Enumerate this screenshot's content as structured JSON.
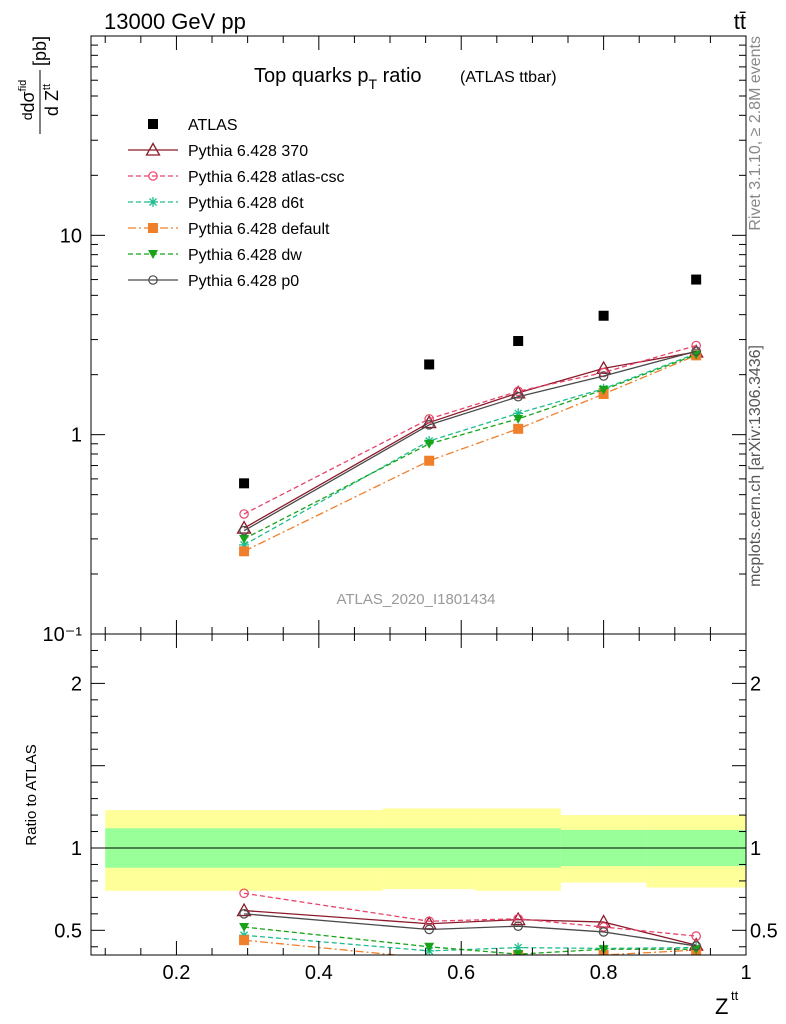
{
  "header": {
    "left": "13000 GeV pp",
    "right": "tt̄"
  },
  "side_labels": {
    "rivet": "Rivet 3.1.10, ≥ 2.8M events",
    "mcplots": "mcplots.cern.ch [arXiv:1306.3436]"
  },
  "analysis_id": "ATLAS_2020_I1801434",
  "chart_data": [
    {
      "type": "scatter",
      "title": "Top quarks p",
      "title_sub": "T",
      "title_rest": " ratio",
      "title_small": "(ATLAS ttbar)",
      "ylabel": "dσ^fid / d Z^tt [pb]",
      "y_scale": "log",
      "ylim": [
        0.1,
        100
      ],
      "xlim": [
        0.08,
        1.0
      ],
      "y_ticks": [
        {
          "value": 10,
          "label": "10"
        },
        {
          "value": 1,
          "label": "1"
        },
        {
          "value": 0.1,
          "label": "10⁻¹"
        }
      ],
      "legend_position": "top-left",
      "series": [
        {
          "name": "ATLAS",
          "color": "#000000",
          "marker": "square",
          "line": "none",
          "x": [
            0.295,
            0.555,
            0.68,
            0.8,
            0.93
          ],
          "y": [
            0.57,
            2.25,
            2.95,
            3.95,
            6.0
          ]
        },
        {
          "name": "Pythia 6.428 370",
          "color": "#8b1a2a",
          "marker": "triangle-open",
          "line": "solid",
          "x": [
            0.295,
            0.555,
            0.68,
            0.8,
            0.93
          ],
          "y": [
            0.34,
            1.15,
            1.62,
            2.15,
            2.6
          ]
        },
        {
          "name": "Pythia 6.428 atlas-csc",
          "color": "#e8436a",
          "marker": "circle-open",
          "line": "dashed",
          "x": [
            0.295,
            0.555,
            0.68,
            0.8,
            0.93
          ],
          "y": [
            0.4,
            1.2,
            1.65,
            2.05,
            2.8
          ]
        },
        {
          "name": "Pythia 6.428 d6t",
          "color": "#1fbd8f",
          "marker": "star",
          "line": "dashed",
          "x": [
            0.295,
            0.555,
            0.68,
            0.8,
            0.93
          ],
          "y": [
            0.28,
            0.93,
            1.28,
            1.7,
            2.55
          ]
        },
        {
          "name": "Pythia 6.428 default",
          "color": "#f07f2c",
          "marker": "square",
          "line": "dashdot",
          "x": [
            0.295,
            0.555,
            0.68,
            0.8,
            0.93
          ],
          "y": [
            0.26,
            0.74,
            1.07,
            1.6,
            2.5
          ]
        },
        {
          "name": "Pythia 6.428 dw",
          "color": "#18a418",
          "marker": "triangle-down",
          "line": "dashed",
          "x": [
            0.295,
            0.555,
            0.68,
            0.8,
            0.93
          ],
          "y": [
            0.3,
            0.9,
            1.2,
            1.68,
            2.52
          ]
        },
        {
          "name": "Pythia 6.428 p0",
          "color": "#4a4a4a",
          "marker": "circle-open",
          "line": "solid",
          "x": [
            0.295,
            0.555,
            0.68,
            0.8,
            0.93
          ],
          "y": [
            0.33,
            1.12,
            1.55,
            1.97,
            2.62
          ]
        }
      ]
    },
    {
      "type": "scatter",
      "ylabel": "Ratio to ATLAS",
      "xlabel": "Z^tt",
      "ylim": [
        0.35,
        2.3
      ],
      "xlim": [
        0.08,
        1.0
      ],
      "y_ticks": [
        {
          "value": 2,
          "label": "2"
        },
        {
          "value": 1,
          "label": "1"
        },
        {
          "value": 0.5,
          "label": "0.5"
        }
      ],
      "x_ticks": [
        {
          "value": 0.2,
          "label": "0.2"
        },
        {
          "value": 0.4,
          "label": "0.4"
        },
        {
          "value": 0.6,
          "label": "0.6"
        },
        {
          "value": 0.8,
          "label": "0.8"
        },
        {
          "value": 1,
          "label": "1"
        }
      ],
      "reference_line": 1,
      "bands": [
        {
          "xlo": 0.1,
          "xhi": 0.49,
          "stat_lo": 0.88,
          "stat_hi": 1.12,
          "tot_lo": 0.74,
          "tot_hi": 1.23
        },
        {
          "xlo": 0.49,
          "xhi": 0.62,
          "stat_lo": 0.88,
          "stat_hi": 1.12,
          "tot_lo": 0.75,
          "tot_hi": 1.24
        },
        {
          "xlo": 0.62,
          "xhi": 0.74,
          "stat_lo": 0.88,
          "stat_hi": 1.12,
          "tot_lo": 0.74,
          "tot_hi": 1.24
        },
        {
          "xlo": 0.74,
          "xhi": 0.86,
          "stat_lo": 0.89,
          "stat_hi": 1.11,
          "tot_lo": 0.79,
          "tot_hi": 1.2
        },
        {
          "xlo": 0.86,
          "xhi": 1.0,
          "stat_lo": 0.89,
          "stat_hi": 1.11,
          "tot_lo": 0.76,
          "tot_hi": 1.2
        }
      ],
      "band_colors": {
        "stat": "#99ff99",
        "total": "#ffff99"
      },
      "series": [
        {
          "name": "Pythia 6.428 370",
          "color": "#8b1a2a",
          "marker": "triangle-open",
          "line": "solid",
          "x": [
            0.295,
            0.555,
            0.68,
            0.8,
            0.93
          ],
          "y": [
            0.62,
            0.54,
            0.565,
            0.55,
            0.41
          ]
        },
        {
          "name": "Pythia 6.428 atlas-csc",
          "color": "#e8436a",
          "marker": "circle-open",
          "line": "dashed",
          "x": [
            0.295,
            0.555,
            0.68,
            0.8,
            0.93
          ],
          "y": [
            0.725,
            0.555,
            0.57,
            0.52,
            0.465
          ]
        },
        {
          "name": "Pythia 6.428 d6t",
          "color": "#1fbd8f",
          "marker": "star",
          "line": "dashed",
          "x": [
            0.295,
            0.555,
            0.68,
            0.8,
            0.93
          ],
          "y": [
            0.47,
            0.375,
            0.395,
            0.39,
            0.395
          ]
        },
        {
          "name": "Pythia 6.428 default",
          "color": "#f07f2c",
          "marker": "square",
          "line": "dashdot",
          "x": [
            0.295,
            0.555,
            0.68,
            0.8,
            0.93
          ],
          "y": [
            0.44,
            0.33,
            0.35,
            0.35,
            0.38
          ]
        },
        {
          "name": "Pythia 6.428 dw",
          "color": "#18a418",
          "marker": "triangle-down",
          "line": "dashed",
          "x": [
            0.295,
            0.555,
            0.68,
            0.8,
            0.93
          ],
          "y": [
            0.52,
            0.4,
            0.355,
            0.385,
            0.385
          ]
        },
        {
          "name": "Pythia 6.428 p0",
          "color": "#4a4a4a",
          "marker": "circle-open",
          "line": "solid",
          "x": [
            0.295,
            0.555,
            0.68,
            0.8,
            0.93
          ],
          "y": [
            0.6,
            0.505,
            0.525,
            0.49,
            0.405
          ]
        }
      ]
    }
  ]
}
